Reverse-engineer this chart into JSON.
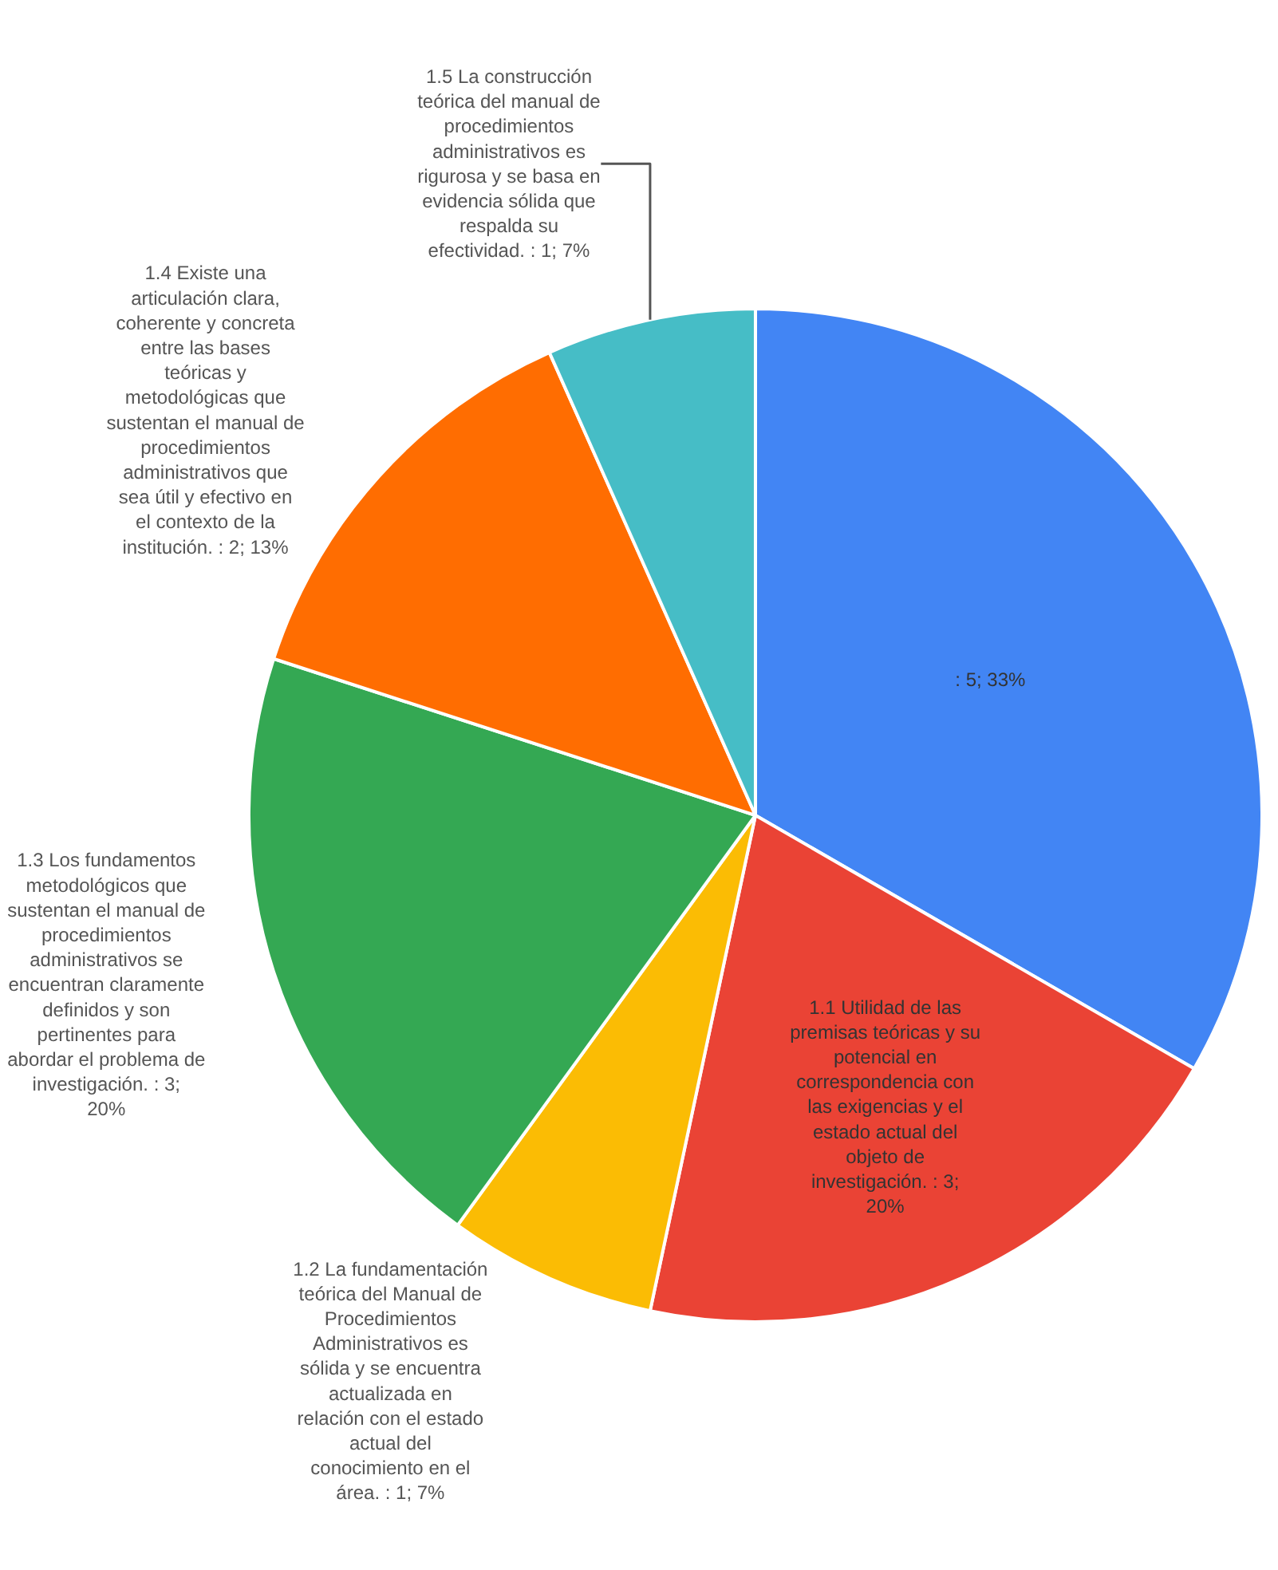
{
  "chart_data": {
    "type": "pie",
    "categories": [
      null,
      "1.1 Utilidad de las premisas teóricas y su potencial en correspondencia con las exigencias y el estado actual del objeto de investigación.",
      "1.2 La fundamentación teórica del Manual de Procedimientos Administrativos es sólida y se encuentra actualizada en relación con el estado actual del conocimiento en el área.",
      "1.3 Los fundamentos metodológicos que sustentan el manual de procedimientos administrativos se encuentran claramente definidos y son pertinentes para abordar el problema de investigación.",
      "1.4 Existe una articulación clara, coherente y concreta entre las bases teóricas y metodológicas que sustentan el manual de procedimientos administrativos que sea útil y efectivo en el contexto de la institución.",
      "1.5 La construcción teórica del manual de procedimientos administrativos es rigurosa y se basa en evidencia sólida que respalda su efectividad."
    ],
    "values": [
      5,
      3,
      1,
      3,
      2,
      1
    ],
    "value_labels": [
      ": 5; 33%",
      ": 3; 20%",
      ": 1; 7%",
      ": 3; 20%",
      ": 2; 13%",
      ": 1; 7%"
    ],
    "colors": [
      "#4285f4",
      "#ea4335",
      "#fbbc04",
      "#34a853",
      "#ff6d01",
      "#46bdc6"
    ],
    "legend": false
  }
}
